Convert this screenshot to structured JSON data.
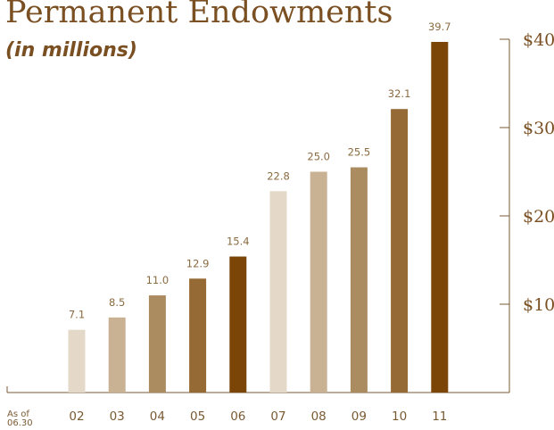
{
  "header": {
    "title": "Permanent Endowments",
    "subtitle": "(in millions)"
  },
  "footnote": {
    "as_of_line1": "As of",
    "as_of_line2": "06.30"
  },
  "colors": {
    "title": "#7a4f22",
    "axis": "#7a5a33",
    "value_label": "#8a6a40",
    "bar_lightest": "#e4d9c9",
    "bar_light": "#c9b293",
    "bar_medium": "#ab8c61",
    "bar_mid_dark": "#966a35",
    "bar_darkest": "#7a4506"
  },
  "chart_data": {
    "type": "bar",
    "title": "Permanent Endowments",
    "subtitle": "(in millions)",
    "categories": [
      "02",
      "03",
      "04",
      "05",
      "06",
      "07",
      "08",
      "09",
      "10",
      "11"
    ],
    "values": [
      7.1,
      8.5,
      11.0,
      12.9,
      15.4,
      22.8,
      25.0,
      25.5,
      32.1,
      39.7
    ],
    "value_labels": [
      "7.1",
      "8.5",
      "11.0",
      "12.9",
      "15.4",
      "22.8",
      "25.0",
      "25.5",
      "32.1",
      "39.7"
    ],
    "bar_colors": [
      "#e4d9c9",
      "#c9b293",
      "#ab8c61",
      "#966a35",
      "#7a4506",
      "#e4d9c9",
      "#c9b293",
      "#ab8c61",
      "#966a35",
      "#7a4506"
    ],
    "y_ticks": [
      10,
      20,
      30,
      40
    ],
    "y_tick_labels": [
      "$10",
      "$20",
      "$30",
      "$40"
    ],
    "ylim": [
      0,
      40
    ],
    "y_axis_position": "right",
    "grid": false,
    "xlabel": "",
    "ylabel": ""
  }
}
